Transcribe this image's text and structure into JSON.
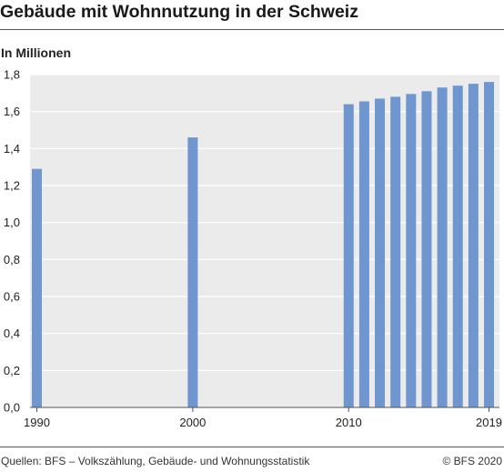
{
  "title": "Gebäude mit Wohnnutzung in der Schweiz",
  "unit_label": "In Millionen",
  "source": "Quellen: BFS – Volkszählung, Gebäude- und Wohnungsstatistik",
  "copyright": "© BFS 2020",
  "chart_data": {
    "type": "bar",
    "x": [
      1990,
      2000,
      2010,
      2011,
      2012,
      2013,
      2014,
      2015,
      2016,
      2017,
      2018,
      2019
    ],
    "values": [
      1.29,
      1.46,
      1.64,
      1.655,
      1.67,
      1.68,
      1.695,
      1.71,
      1.73,
      1.74,
      1.75,
      1.76
    ],
    "x_tick_labels": [
      "1990",
      "2000",
      "2010",
      "2019"
    ],
    "x_tick_values": [
      1990,
      2000,
      2010,
      2019
    ],
    "y_ticks": [
      "0,0",
      "0,2",
      "0,4",
      "0,6",
      "0,8",
      "1,0",
      "1,2",
      "1,4",
      "1,6",
      "1,8"
    ],
    "y_tick_values": [
      0,
      0.2,
      0.4,
      0.6,
      0.8,
      1.0,
      1.2,
      1.4,
      1.6,
      1.8
    ],
    "ylim": [
      0,
      1.8
    ],
    "xlim": [
      1990,
      2019
    ],
    "grid": true,
    "colors": {
      "bar": "#6f96cf",
      "plot_bg": "#ebebeb",
      "grid": "#ffffff",
      "axis": "#555555"
    }
  }
}
